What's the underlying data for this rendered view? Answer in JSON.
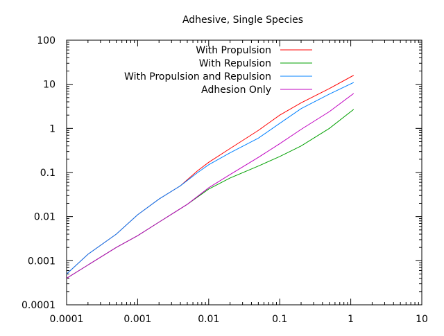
{
  "chart_data": {
    "type": "line",
    "title": "Adhesive, Single Species",
    "xlabel": "",
    "ylabel": "",
    "x_scale": "log",
    "y_scale": "log",
    "xlim": [
      0.0001,
      10
    ],
    "ylim": [
      0.0001,
      100
    ],
    "x_ticks": [
      "0.0001",
      "0.001",
      "0.01",
      "0.1",
      "1",
      "10"
    ],
    "y_ticks": [
      "0.0001",
      "0.001",
      "0.01",
      "0.1",
      "1",
      "10",
      "100"
    ],
    "grid": false,
    "legend_position": "top-right",
    "series": [
      {
        "name": "With Propulsion",
        "color": "#ff0000",
        "x": [
          0.0001,
          0.0002,
          0.0005,
          0.001,
          0.002,
          0.004,
          0.007,
          0.01,
          0.02,
          0.05,
          0.1,
          0.2,
          0.5,
          1.1
        ],
        "y": [
          0.0005,
          0.0014,
          0.004,
          0.011,
          0.025,
          0.05,
          0.11,
          0.17,
          0.35,
          0.9,
          2.0,
          3.8,
          8.0,
          16
        ]
      },
      {
        "name": "With Repulsion",
        "color": "#00a000",
        "x": [
          0.0001,
          0.0002,
          0.0005,
          0.001,
          0.002,
          0.005,
          0.01,
          0.02,
          0.05,
          0.1,
          0.2,
          0.5,
          1.1
        ],
        "y": [
          0.0004,
          0.0008,
          0.002,
          0.0037,
          0.0075,
          0.019,
          0.042,
          0.075,
          0.14,
          0.23,
          0.4,
          1.0,
          2.7
        ]
      },
      {
        "name": "With Propulsion and Repulsion",
        "color": "#0080ff",
        "x": [
          0.0001,
          0.0002,
          0.0005,
          0.001,
          0.002,
          0.004,
          0.007,
          0.01,
          0.02,
          0.05,
          0.1,
          0.2,
          0.5,
          1.1
        ],
        "y": [
          0.0005,
          0.0014,
          0.004,
          0.011,
          0.025,
          0.05,
          0.1,
          0.15,
          0.28,
          0.6,
          1.3,
          2.8,
          6.0,
          11
        ]
      },
      {
        "name": "Adhesion Only",
        "color": "#c000c0",
        "x": [
          0.0001,
          0.0002,
          0.0005,
          0.001,
          0.002,
          0.005,
          0.01,
          0.02,
          0.05,
          0.1,
          0.2,
          0.5,
          1.1
        ],
        "y": [
          0.0004,
          0.0008,
          0.002,
          0.0037,
          0.0075,
          0.019,
          0.045,
          0.09,
          0.22,
          0.45,
          0.95,
          2.4,
          6.2
        ]
      }
    ]
  }
}
